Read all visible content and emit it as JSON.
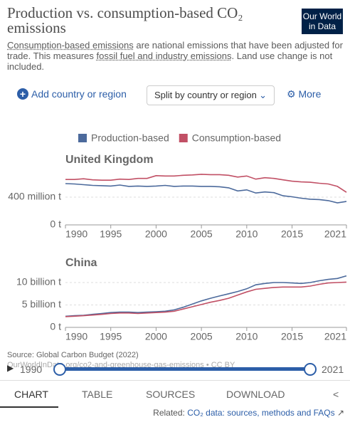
{
  "header": {
    "title": "Production vs. consumption-based CO₂ emissions",
    "logo": "Our World in Data",
    "subtitle": [
      "Consumption-based emissions",
      " are national emissions that have been adjusted for trade. This measures ",
      "fossil fuel and industry emissions",
      ". Land use change is not included."
    ]
  },
  "controls": {
    "add": "Add country or region",
    "split": "Split by country or region",
    "more": "More"
  },
  "chart_data": [
    {
      "type": "line",
      "title": "United Kingdom",
      "x": [
        1990,
        1991,
        1992,
        1993,
        1994,
        1995,
        1996,
        1997,
        1998,
        1999,
        2000,
        2001,
        2002,
        2003,
        2004,
        2005,
        2006,
        2007,
        2008,
        2009,
        2010,
        2011,
        2012,
        2013,
        2014,
        2015,
        2016,
        2017,
        2018,
        2019,
        2020,
        2021
      ],
      "series": [
        {
          "name": "Production-based",
          "color": "#4c6a9c",
          "values": [
            595000000,
            590000000,
            580000000,
            570000000,
            565000000,
            560000000,
            575000000,
            555000000,
            560000000,
            555000000,
            560000000,
            570000000,
            555000000,
            560000000,
            560000000,
            555000000,
            555000000,
            550000000,
            535000000,
            490000000,
            505000000,
            460000000,
            475000000,
            465000000,
            420000000,
            405000000,
            385000000,
            370000000,
            365000000,
            350000000,
            318000000,
            338000000
          ]
        },
        {
          "name": "Consumption-based",
          "color": "#c15065",
          "values": [
            655000000,
            655000000,
            665000000,
            650000000,
            645000000,
            645000000,
            660000000,
            655000000,
            670000000,
            670000000,
            710000000,
            705000000,
            705000000,
            715000000,
            720000000,
            730000000,
            725000000,
            725000000,
            715000000,
            690000000,
            705000000,
            660000000,
            680000000,
            670000000,
            650000000,
            630000000,
            620000000,
            615000000,
            600000000,
            590000000,
            555000000,
            470000000
          ]
        }
      ],
      "xlim": [
        1990,
        2021
      ],
      "xticks": [
        1990,
        1995,
        2000,
        2005,
        2010,
        2015,
        2021
      ],
      "ylim": [
        0,
        780000000
      ],
      "yticks": [
        {
          "value": 0,
          "label": "0 t"
        },
        {
          "value": 400000000,
          "label": "400 million t"
        }
      ],
      "grid": true
    },
    {
      "type": "line",
      "title": "China",
      "x": [
        1990,
        1991,
        1992,
        1993,
        1994,
        1995,
        1996,
        1997,
        1998,
        1999,
        2000,
        2001,
        2002,
        2003,
        2004,
        2005,
        2006,
        2007,
        2008,
        2009,
        2010,
        2011,
        2012,
        2013,
        2014,
        2015,
        2016,
        2017,
        2018,
        2019,
        2020,
        2021
      ],
      "series": [
        {
          "name": "Production-based",
          "color": "#4c6a9c",
          "values": [
            2480000000,
            2600000000,
            2700000000,
            2900000000,
            3100000000,
            3300000000,
            3400000000,
            3400000000,
            3300000000,
            3400000000,
            3500000000,
            3600000000,
            3900000000,
            4500000000,
            5200000000,
            5900000000,
            6500000000,
            7000000000,
            7500000000,
            8000000000,
            8600000000,
            9500000000,
            9800000000,
            10000000000,
            10000000000,
            9900000000,
            9800000000,
            10000000000,
            10400000000,
            10700000000,
            10900000000,
            11500000000
          ]
        },
        {
          "name": "Consumption-based",
          "color": "#c15065",
          "values": [
            2400000000,
            2500000000,
            2600000000,
            2750000000,
            2900000000,
            3100000000,
            3200000000,
            3200000000,
            3100000000,
            3200000000,
            3300000000,
            3400000000,
            3600000000,
            4100000000,
            4600000000,
            5100000000,
            5600000000,
            6000000000,
            6500000000,
            7200000000,
            7900000000,
            8500000000,
            8700000000,
            8900000000,
            9000000000,
            9000000000,
            9000000000,
            9200000000,
            9600000000,
            9900000000,
            10000000000,
            10100000000
          ]
        }
      ],
      "xlim": [
        1990,
        2021
      ],
      "xticks": [
        1990,
        1995,
        2000,
        2005,
        2010,
        2015,
        2021
      ],
      "ylim": [
        0,
        12700000000
      ],
      "yticks": [
        {
          "value": 0,
          "label": "0 t"
        },
        {
          "value": 5000000000,
          "label": "5 billion t"
        },
        {
          "value": 10000000000,
          "label": "10 billion t"
        }
      ],
      "grid": true
    }
  ],
  "footer": {
    "source": "Source: Global Carbon Budget (2022)",
    "url": "OurWorldInData.org/co2-and-greenhouse-gas-emissions • CC BY",
    "timeline": {
      "start": "1990",
      "end": "2021"
    },
    "tabs": [
      "CHART",
      "TABLE",
      "SOURCES",
      "DOWNLOAD"
    ],
    "related_label": "Related: ",
    "related_link": "CO₂ data: sources, methods and FAQs"
  }
}
